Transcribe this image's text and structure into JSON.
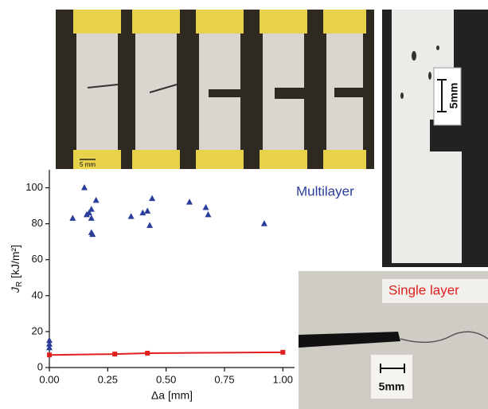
{
  "chart_data": {
    "type": "scatter",
    "x_label": "Δa [mm]",
    "y_label": {
      "symbol": "J",
      "subscript": "R",
      "unit": " [kJ/m²]"
    },
    "xlim": [
      0,
      1.05
    ],
    "ylim": [
      0,
      110
    ],
    "xticks": [
      {
        "value": 0,
        "label": "0.00"
      },
      {
        "value": 0.25,
        "label": "0.25"
      },
      {
        "value": 0.5,
        "label": "0.50"
      },
      {
        "value": 0.75,
        "label": "0.75"
      },
      {
        "value": 1,
        "label": "1.00"
      }
    ],
    "yticks": [
      0,
      20,
      40,
      60,
      80,
      100
    ],
    "series": [
      {
        "name": "Multilayer",
        "color": "#2a3d9a",
        "marker": "triangle",
        "line": false,
        "x": [
          0,
          0,
          0,
          0.1,
          0.15,
          0.16,
          0.17,
          0.18,
          0.18,
          0.18,
          0.185,
          0.2,
          0.35,
          0.4,
          0.42,
          0.43,
          0.44,
          0.6,
          0.67,
          0.68,
          0.92
        ],
        "values": [
          15,
          13,
          11,
          83,
          100,
          85,
          86,
          88,
          83,
          75,
          74,
          93,
          84,
          86,
          87,
          79,
          94,
          92,
          89,
          85,
          80
        ]
      },
      {
        "name": "Single layer",
        "color": "#e02020",
        "marker": "square",
        "line": true,
        "x": [
          0,
          0.28,
          0.42,
          1
        ],
        "values": [
          7,
          7.5,
          8,
          8.5
        ]
      }
    ]
  },
  "photos": {
    "top_scale": "5 mm",
    "right_scale": "5mm",
    "bottom_scale": "5mm"
  }
}
